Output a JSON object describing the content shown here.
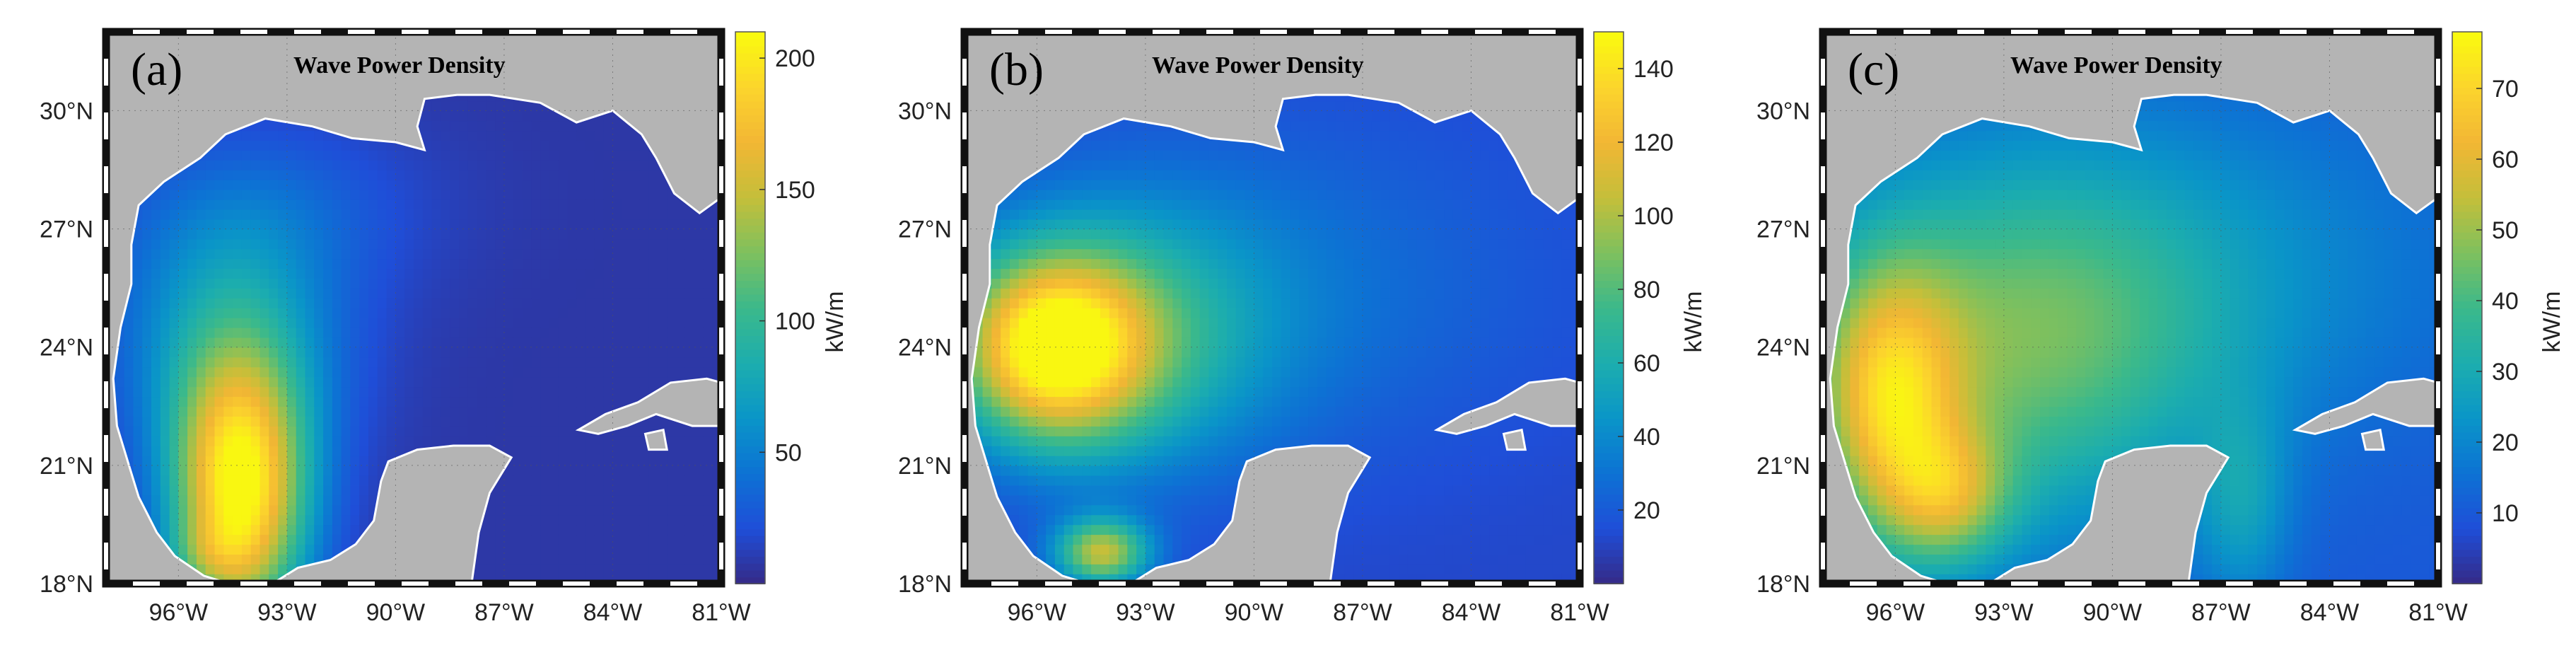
{
  "colors": {
    "land": "#b4b4b4",
    "frame_dark": "#111111",
    "frame_light": "#ffffff",
    "colormap": [
      "#352a87",
      "#1f4ed8",
      "#0d72d4",
      "#0a95c8",
      "#1cadae",
      "#3bb98b",
      "#7ec05e",
      "#c4bf3a",
      "#f2b634",
      "#fcd52c",
      "#f9fb0e"
    ]
  },
  "figure": {
    "panels": [
      {
        "id": "panel-a",
        "label": "(a)",
        "title": "Wave Power Density",
        "unit": "kW/m",
        "x_ticks": [
          "96°W",
          "93°W",
          "90°W",
          "87°W",
          "84°W",
          "81°W"
        ],
        "y_ticks": [
          "18°N",
          "21°N",
          "24°N",
          "27°N",
          "30°N"
        ],
        "colorbar": {
          "min": 0,
          "max": 210,
          "ticks": [
            50,
            100,
            150,
            200
          ]
        }
      },
      {
        "id": "panel-b",
        "label": "(b)",
        "title": "Wave Power Density",
        "unit": "kW/m",
        "x_ticks": [
          "96°W",
          "93°W",
          "90°W",
          "87°W",
          "84°W",
          "81°W"
        ],
        "y_ticks": [
          "18°N",
          "21°N",
          "24°N",
          "27°N",
          "30°N"
        ],
        "colorbar": {
          "min": 0,
          "max": 150,
          "ticks": [
            20,
            40,
            60,
            80,
            100,
            120,
            140
          ]
        }
      },
      {
        "id": "panel-c",
        "label": "(c)",
        "title": "Wave Power Density",
        "unit": "kW/m",
        "x_ticks": [
          "96°W",
          "93°W",
          "90°W",
          "87°W",
          "84°W",
          "81°W"
        ],
        "y_ticks": [
          "18°N",
          "21°N",
          "24°N",
          "27°N",
          "30°N"
        ],
        "colorbar": {
          "min": 0,
          "max": 78,
          "ticks": [
            10,
            20,
            30,
            40,
            50,
            60,
            70
          ]
        }
      }
    ]
  }
}
